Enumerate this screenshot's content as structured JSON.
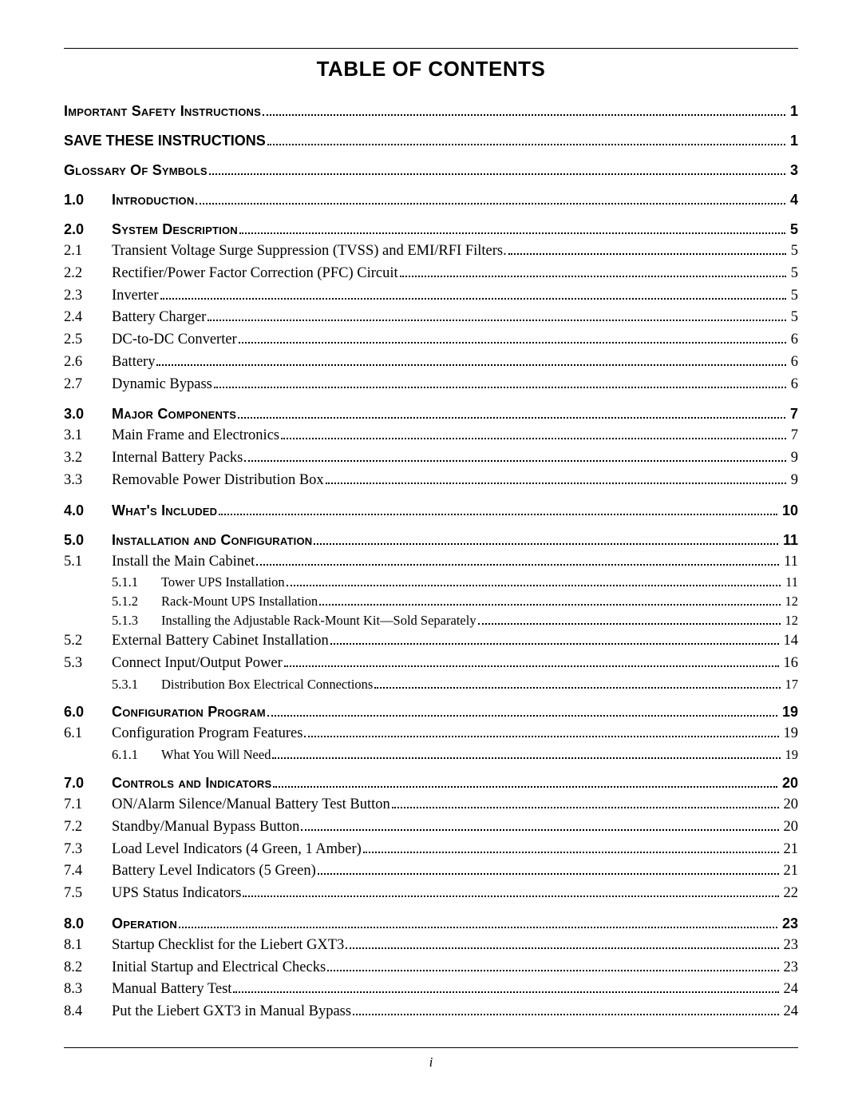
{
  "title": "TABLE OF CONTENTS",
  "page_number": "i",
  "entries": [
    {
      "type": "bold-sc",
      "num": "",
      "label": "Important Safety Instructions",
      "page": "1"
    },
    {
      "type": "bold",
      "num": "",
      "label": "SAVE THESE INSTRUCTIONS",
      "page": "1"
    },
    {
      "type": "bold-sc",
      "num": "",
      "label": "Glossary Of Symbols",
      "page": "3"
    },
    {
      "type": "bold-sc",
      "num": "1.0",
      "label": "Introduction",
      "page": "4"
    },
    {
      "type": "bold-sc",
      "num": "2.0",
      "label": "System Description",
      "page": "5"
    },
    {
      "type": "sub",
      "num": "2.1",
      "label": "Transient Voltage Surge Suppression (TVSS) and EMI/RFI Filters.",
      "page": "5"
    },
    {
      "type": "sub",
      "num": "2.2",
      "label": "Rectifier/Power Factor Correction (PFC) Circuit",
      "page": "5"
    },
    {
      "type": "sub",
      "num": "2.3",
      "label": "Inverter",
      "page": "5"
    },
    {
      "type": "sub",
      "num": "2.4",
      "label": "Battery Charger",
      "page": "5"
    },
    {
      "type": "sub",
      "num": "2.5",
      "label": "DC-to-DC Converter",
      "page": "6"
    },
    {
      "type": "sub",
      "num": "2.6",
      "label": "Battery",
      "page": "6"
    },
    {
      "type": "sub",
      "num": "2.7",
      "label": "Dynamic Bypass",
      "page": "6"
    },
    {
      "type": "bold-sc",
      "num": "3.0",
      "label": "Major Components",
      "page": "7"
    },
    {
      "type": "sub",
      "num": "3.1",
      "label": "Main Frame and Electronics",
      "page": "7"
    },
    {
      "type": "sub",
      "num": "3.2",
      "label": "Internal Battery Packs",
      "page": "9"
    },
    {
      "type": "sub",
      "num": "3.3",
      "label": "Removable Power Distribution Box",
      "page": "9"
    },
    {
      "type": "bold-sc",
      "num": "4.0",
      "label": "What's Included",
      "page": "10"
    },
    {
      "type": "bold-sc",
      "num": "5.0",
      "label": "Installation and Configuration",
      "page": "11"
    },
    {
      "type": "sub",
      "num": "5.1",
      "label": "Install the Main Cabinet",
      "page": "11"
    },
    {
      "type": "subsub",
      "num": "",
      "subnum": "5.1.1",
      "label": "Tower UPS Installation",
      "page": "11"
    },
    {
      "type": "subsub",
      "num": "",
      "subnum": "5.1.2",
      "label": "Rack-Mount UPS Installation",
      "page": "12"
    },
    {
      "type": "subsub",
      "num": "",
      "subnum": "5.1.3",
      "label": "Installing the Adjustable Rack-Mount Kit—Sold Separately",
      "page": "12"
    },
    {
      "type": "sub",
      "num": "5.2",
      "label": "External Battery Cabinet Installation",
      "page": "14"
    },
    {
      "type": "sub",
      "num": "5.3",
      "label": "Connect Input/Output Power",
      "page": "16"
    },
    {
      "type": "subsub",
      "num": "",
      "subnum": "5.3.1",
      "label": "Distribution Box Electrical Connections",
      "page": "17"
    },
    {
      "type": "bold-sc",
      "num": "6.0",
      "label": "Configuration Program",
      "page": "19"
    },
    {
      "type": "sub",
      "num": "6.1",
      "label": "Configuration Program Features",
      "page": "19"
    },
    {
      "type": "subsub",
      "num": "",
      "subnum": "6.1.1",
      "label": "What You Will Need",
      "page": "19"
    },
    {
      "type": "bold-sc",
      "num": "7.0",
      "label": "Controls and Indicators",
      "page": "20"
    },
    {
      "type": "sub",
      "num": "7.1",
      "label": "ON/Alarm Silence/Manual Battery Test Button",
      "page": "20"
    },
    {
      "type": "sub",
      "num": "7.2",
      "label": "Standby/Manual Bypass Button",
      "page": "20"
    },
    {
      "type": "sub",
      "num": "7.3",
      "label": "Load Level Indicators (4 Green, 1 Amber)",
      "page": "21"
    },
    {
      "type": "sub",
      "num": "7.4",
      "label": "Battery Level Indicators (5 Green)",
      "page": "21"
    },
    {
      "type": "sub",
      "num": "7.5",
      "label": "UPS Status Indicators",
      "page": "22"
    },
    {
      "type": "bold-sc",
      "num": "8.0",
      "label": "Operation",
      "page": "23"
    },
    {
      "type": "sub",
      "num": "8.1",
      "label": "Startup Checklist for the Liebert GXT3",
      "page": "23"
    },
    {
      "type": "sub",
      "num": "8.2",
      "label": "Initial Startup and Electrical Checks",
      "page": "23"
    },
    {
      "type": "sub",
      "num": "8.3",
      "label": "Manual Battery Test",
      "page": "24"
    },
    {
      "type": "sub",
      "num": "8.4",
      "label": "Put the Liebert GXT3 in Manual Bypass",
      "page": "24"
    }
  ]
}
